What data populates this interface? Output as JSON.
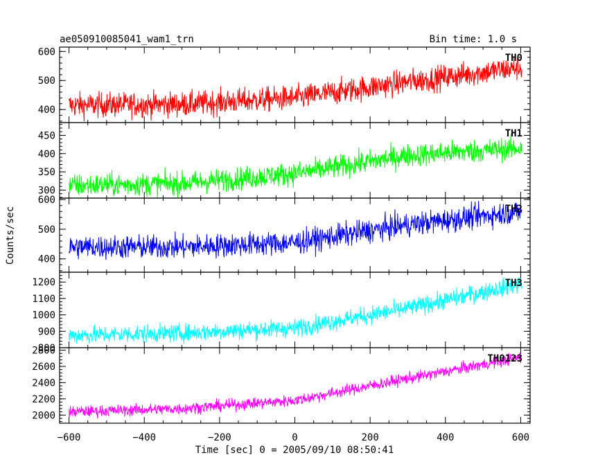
{
  "chart_data": {
    "type": "line",
    "title": "ae050910085041_wam1_trn",
    "subtitle": "Bin time: 1.0 s",
    "xlabel": "Time [sec] 0 = 2005/09/10 08:50:41",
    "ylabel": "Counts/sec",
    "xlim": [
      -625,
      625
    ],
    "xticks": [
      -600,
      -400,
      -200,
      0,
      200,
      400,
      600
    ],
    "x_start": -600,
    "x_end": 603,
    "x_step": 1,
    "grid": false,
    "legend": "none",
    "panels": [
      {
        "name": "TH0",
        "color": "#ff0000",
        "ylim": [
          355,
          615
        ],
        "yticks": [
          400,
          500,
          600
        ],
        "trend": [
          [
            -600,
            415
          ],
          [
            -300,
            418
          ],
          [
            0,
            440
          ],
          [
            300,
            495
          ],
          [
            600,
            545
          ]
        ],
        "noise": 30
      },
      {
        "name": "TH1",
        "color": "#00ff00",
        "ylim": [
          278,
          485
        ],
        "yticks": [
          300,
          350,
          400,
          450
        ],
        "trend": [
          [
            -600,
            312
          ],
          [
            -300,
            318
          ],
          [
            0,
            345
          ],
          [
            300,
            395
          ],
          [
            600,
            415
          ]
        ],
        "noise": 22
      },
      {
        "name": "TH2",
        "color": "#0000ff",
        "ylim": [
          355,
          605
        ],
        "yticks": [
          400,
          500,
          600
        ],
        "trend": [
          [
            -600,
            440
          ],
          [
            -300,
            440
          ],
          [
            0,
            455
          ],
          [
            300,
            515
          ],
          [
            600,
            560
          ]
        ],
        "noise": 28
      },
      {
        "name": "TH3",
        "color": "#00ffff",
        "ylim": [
          800,
          1260
        ],
        "yticks": [
          800,
          900,
          1000,
          1100,
          1200
        ],
        "trend": [
          [
            -600,
            875
          ],
          [
            -300,
            890
          ],
          [
            0,
            920
          ],
          [
            300,
            1040
          ],
          [
            600,
            1190
          ]
        ],
        "noise": 38
      },
      {
        "name": "TH0123",
        "color": "#ff00ff",
        "ylim": [
          1900,
          2830
        ],
        "yticks": [
          2000,
          2200,
          2400,
          2600,
          2800
        ],
        "trend": [
          [
            -600,
            2040
          ],
          [
            -300,
            2080
          ],
          [
            0,
            2180
          ],
          [
            300,
            2450
          ],
          [
            600,
            2710
          ]
        ],
        "noise": 50
      }
    ]
  }
}
